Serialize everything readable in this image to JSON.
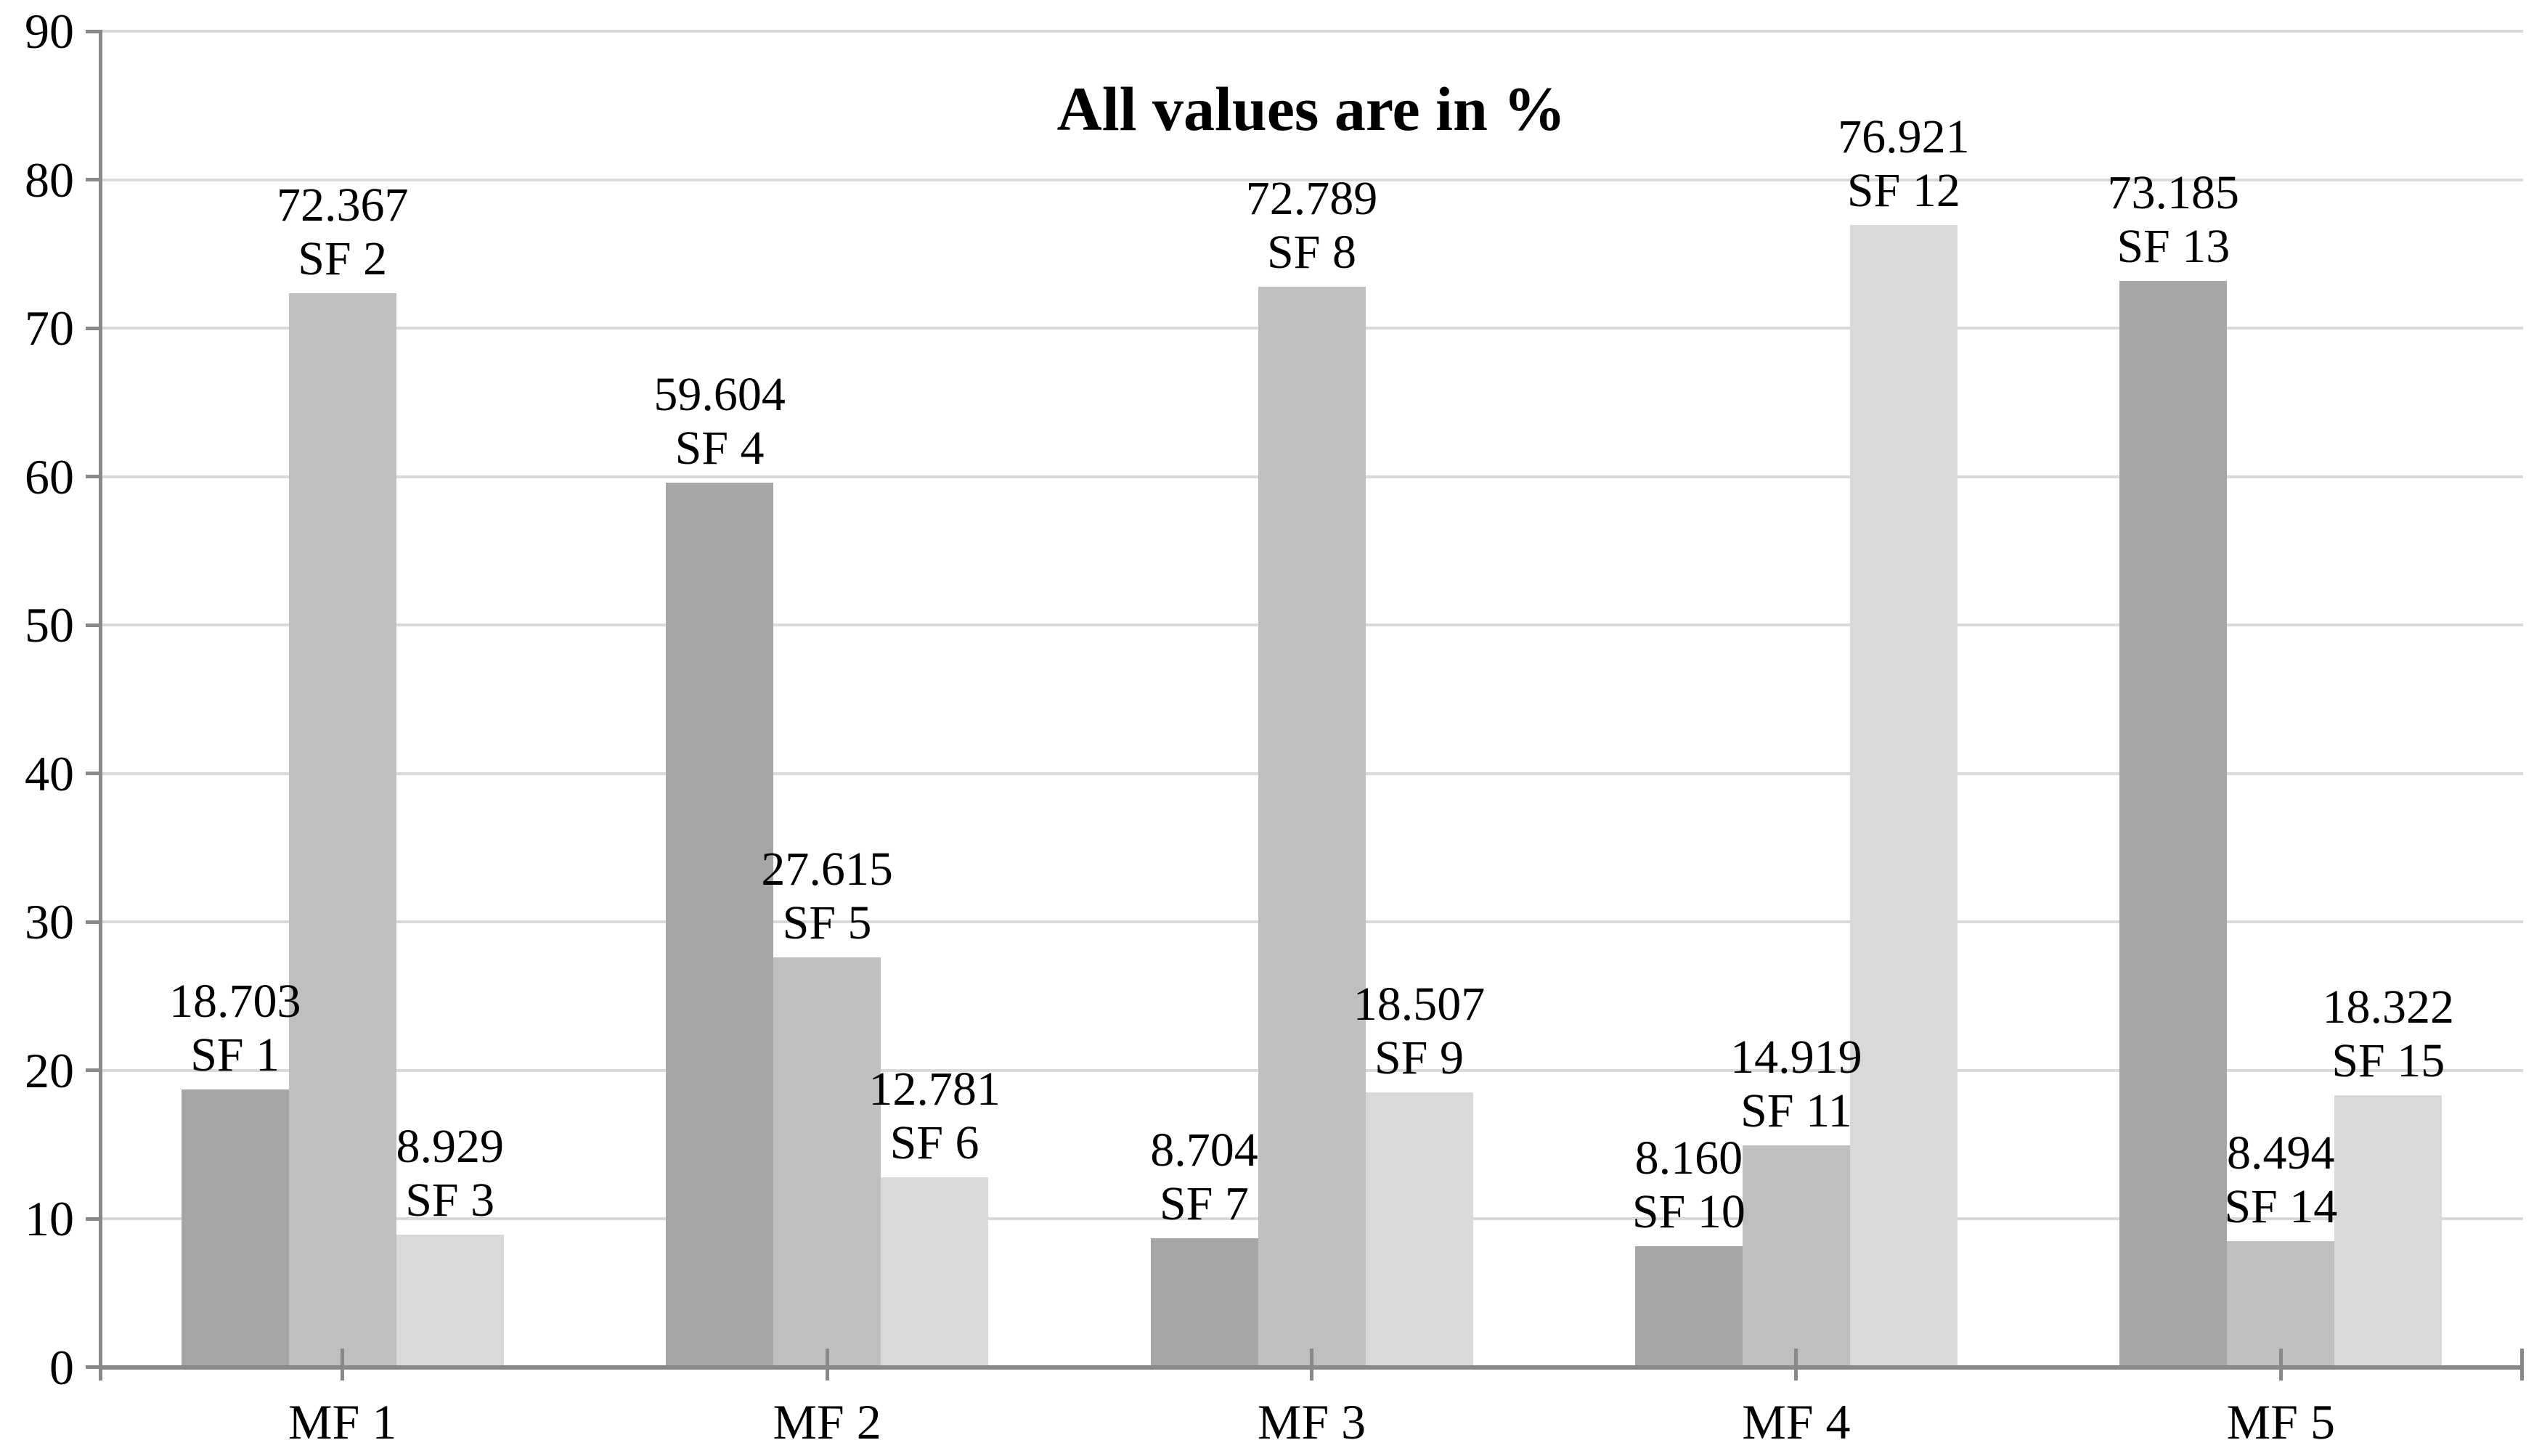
{
  "chart_data": {
    "type": "bar",
    "title": "All values are in %",
    "categories": [
      "MF 1",
      "MF 2",
      "MF 3",
      "MF 4",
      "MF 5"
    ],
    "yticks": [
      "0",
      "10",
      "20",
      "30",
      "40",
      "50",
      "60",
      "70",
      "80",
      "90"
    ],
    "ylim": [
      0,
      90
    ],
    "ytick_interval": 10,
    "grid": true,
    "legend": "none",
    "bar_colors": {
      "dark": "#a6a6a6",
      "medium": "#bfbfbf",
      "light": "#d9d9d9"
    },
    "axis_color": "#898989",
    "gridline_color": "#d9d9d9",
    "series": [
      {
        "name": "series-1",
        "color": "#a6a6a6",
        "values": [
          18.703,
          59.604,
          8.704,
          8.16,
          73.185
        ],
        "value_labels": [
          "18.703",
          "59.604",
          "8.704",
          "8.160",
          "73.185"
        ],
        "sf_labels": [
          "SF 1",
          "SF 4",
          "SF 7",
          "SF 10",
          "SF 13"
        ]
      },
      {
        "name": "series-2",
        "color": "#bfbfbf",
        "values": [
          72.367,
          27.615,
          72.789,
          14.919,
          8.494
        ],
        "value_labels": [
          "72.367",
          "27.615",
          "72.789",
          "14.919",
          "8.494"
        ],
        "sf_labels": [
          "SF 2",
          "SF 5",
          "SF 8",
          "SF 11",
          "SF 14"
        ]
      },
      {
        "name": "series-3",
        "color": "#d9d9d9",
        "values": [
          8.929,
          12.781,
          18.507,
          76.921,
          18.322
        ],
        "value_labels": [
          "8.929",
          "12.781",
          "18.507",
          "76.921",
          "18.322"
        ],
        "sf_labels": [
          "SF 3",
          "SF 6",
          "SF 9",
          "SF 12",
          "SF 15"
        ]
      }
    ]
  }
}
